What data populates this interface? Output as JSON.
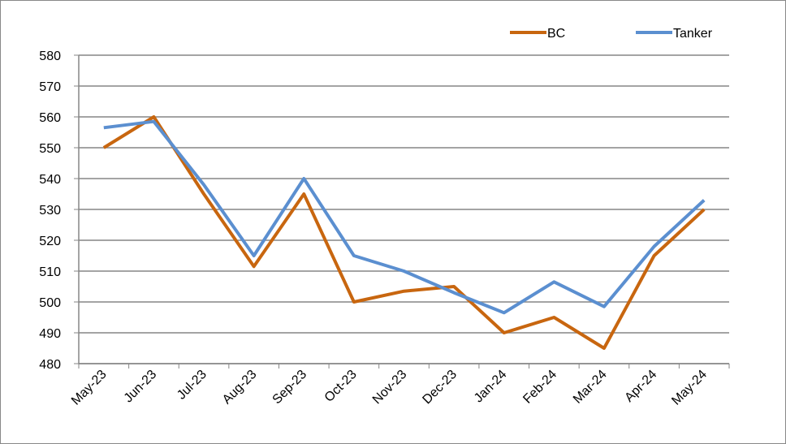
{
  "chart_data": {
    "type": "line",
    "categories": [
      "May-23",
      "Jun-23",
      "Jul-23",
      "Aug-23",
      "Sep-23",
      "Oct-23",
      "Nov-23",
      "Dec-23",
      "Jan-24",
      "Feb-24",
      "Mar-24",
      "Apr-24",
      "May-24"
    ],
    "series": [
      {
        "name": "BC",
        "color": "#c8660f",
        "values": [
          550,
          560,
          535,
          511.5,
          535,
          500,
          503.5,
          505,
          490,
          495,
          485,
          515,
          530
        ]
      },
      {
        "name": "Tanker",
        "color": "#5b8fd0",
        "values": [
          556.5,
          558.5,
          538,
          515,
          540,
          515,
          510,
          503,
          496.5,
          506.5,
          498.5,
          518,
          533
        ]
      }
    ],
    "ylim": [
      480,
      580
    ],
    "yticks": [
      480,
      490,
      500,
      510,
      520,
      530,
      540,
      550,
      560,
      570,
      580
    ],
    "grid": true,
    "legend": "top-right"
  }
}
